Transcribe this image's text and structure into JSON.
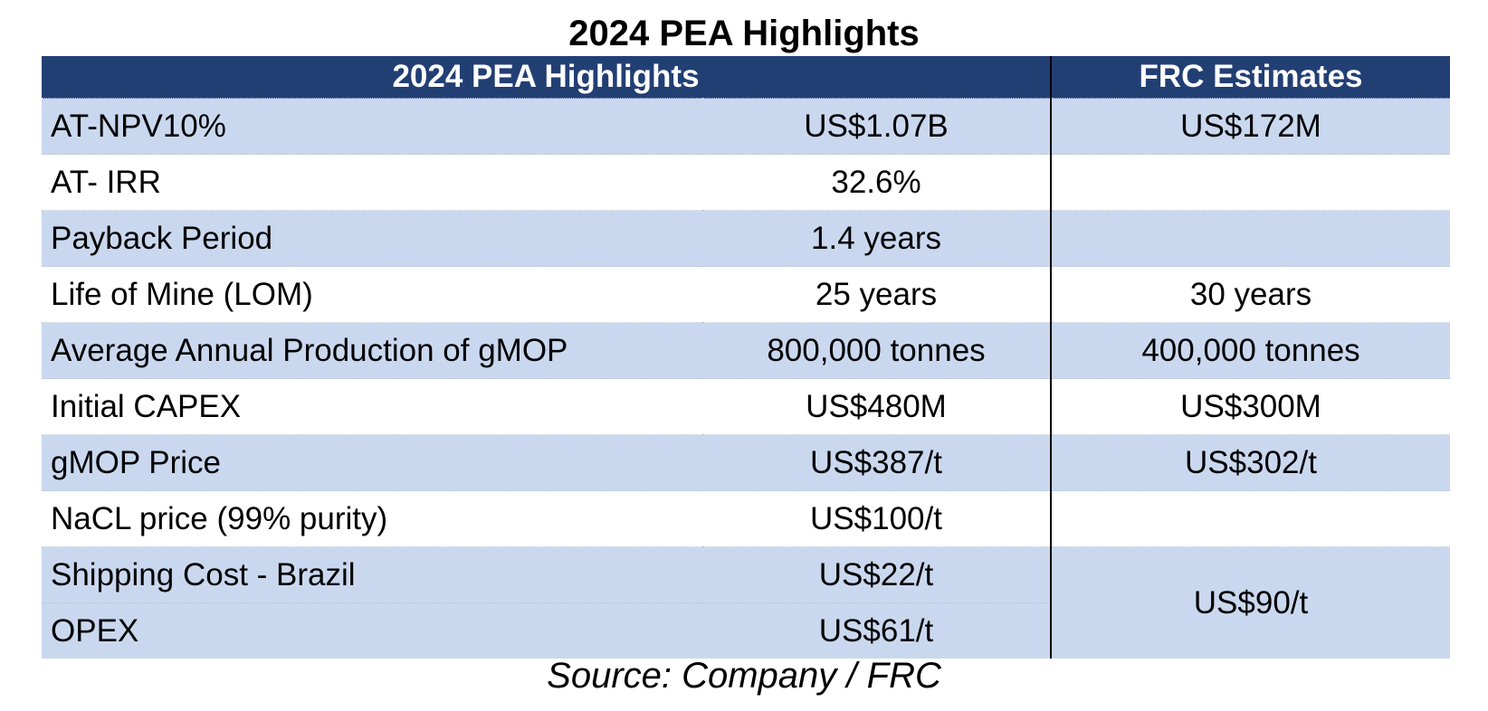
{
  "title": "2024 PEA Highlights",
  "table": {
    "headers": [
      "2024 PEA Highlights",
      "FRC Estimates"
    ],
    "rows": [
      {
        "label": "AT-NPV10%",
        "pea": "US$1.07B",
        "frc": "US$172M"
      },
      {
        "label": "AT- IRR",
        "pea": "32.6%",
        "frc": ""
      },
      {
        "label": "Payback Period",
        "pea": "1.4 years",
        "frc": ""
      },
      {
        "label": "Life of Mine (LOM)",
        "pea": "25 years",
        "frc": "30 years"
      },
      {
        "label": "Average Annual Production of gMOP",
        "pea": "800,000 tonnes",
        "frc": "400,000 tonnes"
      },
      {
        "label": "Initial CAPEX",
        "pea": "US$480M",
        "frc": "US$300M"
      },
      {
        "label": "gMOP Price",
        "pea": "US$387/t",
        "frc": "US$302/t"
      },
      {
        "label": "NaCL price (99% purity)",
        "pea": "US$100/t",
        "frc": ""
      },
      {
        "label": "Shipping Cost - Brazil",
        "pea": "US$22/t",
        "frc": "US$90/t"
      },
      {
        "label": "OPEX",
        "pea": "US$61/t",
        "frc": ""
      }
    ]
  },
  "source": "Source: Company / FRC"
}
